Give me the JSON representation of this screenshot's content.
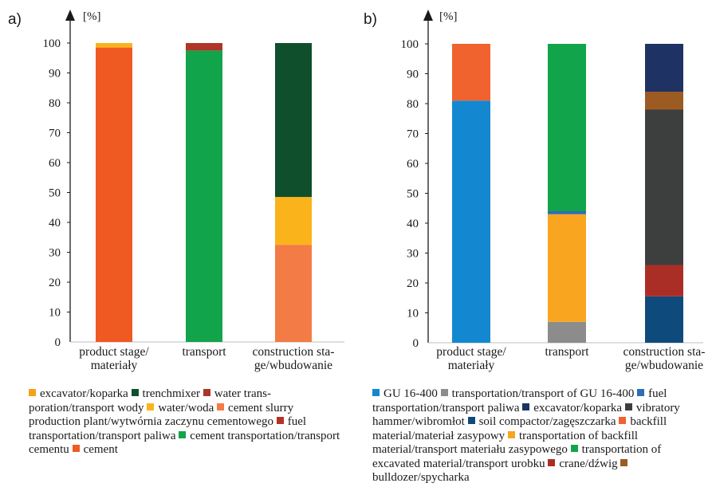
{
  "chart_data": [
    {
      "type": "bar",
      "stacked": true,
      "panel": "a)",
      "ylabel": "[%]",
      "ylim": [
        0,
        100
      ],
      "yticks": [
        0,
        10,
        20,
        30,
        40,
        50,
        60,
        70,
        80,
        90,
        100
      ],
      "grid": false,
      "legend_placement": "bottom",
      "categories": [
        [
          "product stage/",
          "materiały"
        ],
        [
          "transport"
        ],
        [
          "construction sta-",
          "ge/wbudowanie"
        ]
      ],
      "series": [
        {
          "name": "cement",
          "color": "#ef5a23",
          "values": [
            98.5,
            0,
            0
          ]
        },
        {
          "name": "cement transportation/transport cementu",
          "color": "#12a44a",
          "values": [
            0,
            97.5,
            0
          ]
        },
        {
          "name": "fuel transportation/transport paliwa",
          "color": "#b03527",
          "values": [
            0,
            2.5,
            0
          ]
        },
        {
          "name": "cement slurry production plant/wytwórnia zaczynu cementowego",
          "color": "#f37b45",
          "values": [
            0,
            0,
            32.5
          ]
        },
        {
          "name": "water/woda",
          "color": "#fbb31b",
          "values": [
            1.5,
            0,
            16
          ]
        },
        {
          "name": "water transporation/transport wody",
          "color": "#a8362c",
          "values": [
            0,
            0,
            0
          ]
        },
        {
          "name": "trenchmixer",
          "color": "#0f4f2c",
          "values": [
            0,
            0,
            51.5
          ]
        },
        {
          "name": "excavator/koparka",
          "color": "#f6a11c",
          "values": [
            0,
            0,
            0
          ]
        }
      ],
      "legend": [
        {
          "color": "#f6a11c",
          "text": "excavator/koparka"
        },
        {
          "color": "#0f4f2c",
          "text": "trenchmixer"
        },
        {
          "color": "#a8362c",
          "text": "water trans­poration/transport wody"
        },
        {
          "color": "#fbb31b",
          "text": "water/woda"
        },
        {
          "color": "#f37b45",
          "text": "cement slurry production plant/wytwórnia zaczynu ce­mentowego"
        },
        {
          "color": "#b03527",
          "text": "fuel transportation/transport paliwa"
        },
        {
          "color": "#12a44a",
          "text": "cement transportation/transport cementu"
        },
        {
          "color": "#ef5a23",
          "text": "cement"
        }
      ]
    },
    {
      "type": "bar",
      "stacked": true,
      "panel": "b)",
      "ylabel": "[%]",
      "ylim": [
        0,
        100
      ],
      "yticks": [
        0,
        10,
        20,
        30,
        40,
        50,
        60,
        70,
        80,
        90,
        100
      ],
      "grid": false,
      "legend_placement": "bottom",
      "categories": [
        [
          "product stage/",
          "materiały"
        ],
        [
          "transport"
        ],
        [
          "construction sta-",
          "ge/wbudowanie"
        ]
      ],
      "series": [
        {
          "name": "GU 16-400",
          "color": "#1388d0",
          "values": [
            81,
            0,
            0
          ]
        },
        {
          "name": "backfill material/materiał zasypowy",
          "color": "#f0622e",
          "values": [
            19,
            0,
            0
          ]
        },
        {
          "name": "transportation/transport of GU 16-400",
          "color": "#8c8c8c",
          "values": [
            0,
            7,
            0
          ]
        },
        {
          "name": "transportation of backfill material/transport materiału zasypowego",
          "color": "#f9a51f",
          "values": [
            0,
            36,
            0
          ]
        },
        {
          "name": "fuel transportation/transport paliwa",
          "color": "#2e6db5",
          "values": [
            0,
            1,
            0
          ]
        },
        {
          "name": "transportation of excavated material/transport urobku",
          "color": "#12a44a",
          "values": [
            0,
            56,
            0
          ]
        },
        {
          "name": "soil compactor/zagęszczarka",
          "color": "#0f4a7d",
          "values": [
            0,
            0,
            15.5
          ]
        },
        {
          "name": "crane/dźwig",
          "color": "#ab2e26",
          "values": [
            0,
            0,
            10.5
          ]
        },
        {
          "name": "vibratory hammer/wibromłot",
          "color": "#3d3f3e",
          "values": [
            0,
            0,
            52
          ]
        },
        {
          "name": "bulldozer/spycharka",
          "color": "#9d5b24",
          "values": [
            0,
            0,
            6
          ]
        },
        {
          "name": "excavator/koparka",
          "color": "#1e3264",
          "values": [
            0,
            0,
            16
          ]
        }
      ],
      "legend": [
        {
          "color": "#1388d0",
          "text": "GU 16-400"
        },
        {
          "color": "#8c8c8c",
          "text": "transportation/transport of GU 16-400"
        },
        {
          "color": "#2e6db5",
          "text": "fuel transportation/transport paliwa"
        },
        {
          "color": "#1e3264",
          "text": "excavator/koparka"
        },
        {
          "color": "#3d3f3e",
          "text": "vibratory hammer/wibromłot"
        },
        {
          "color": "#0f4a7d",
          "text": "soil compactor/zagęsz­czarka"
        },
        {
          "color": "#f0622e",
          "text": "backfill material/materiał zasypowy"
        },
        {
          "color": "#f9a51f",
          "text": "transporta­tion of backfill material/transport materiału zasypowego"
        },
        {
          "color": "#12a44a",
          "text": "transportation of excavated material/transport urobku"
        },
        {
          "color": "#ab2e26",
          "text": "crane/dźwig"
        },
        {
          "color": "#9d5b24",
          "text": "bulldozer/spycharka"
        }
      ]
    }
  ]
}
